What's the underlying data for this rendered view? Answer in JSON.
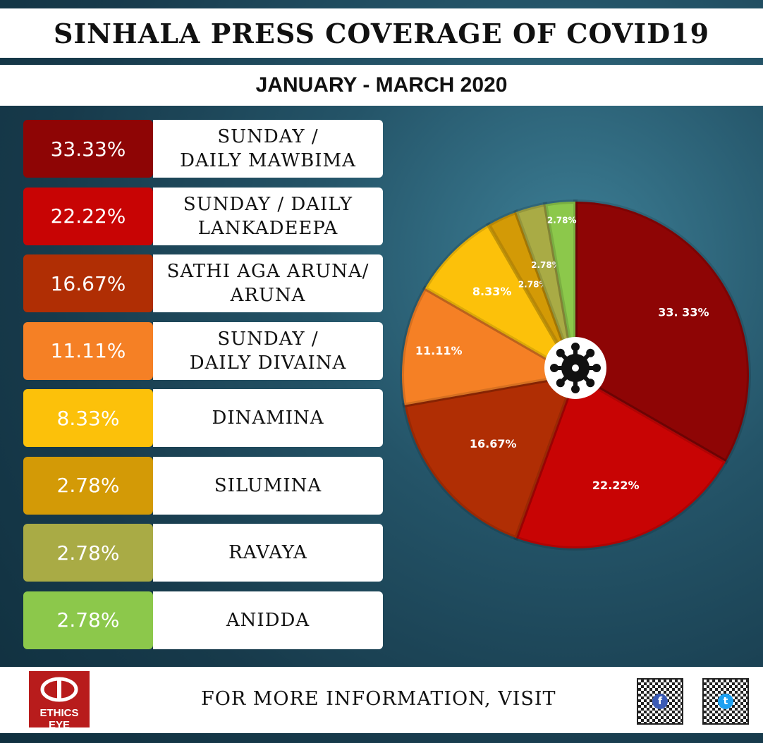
{
  "header": {
    "title": "SINHALA PRESS COVERAGE OF COVID19",
    "subtitle": "JANUARY - MARCH 2020"
  },
  "legend": [
    {
      "pct": "33.33%",
      "name": "SUNDAY /\nDAILY MAWBIMA",
      "color": "#8e0505"
    },
    {
      "pct": "22.22%",
      "name": "SUNDAY / DAILY\nLANKADEEPA",
      "color": "#c80404"
    },
    {
      "pct": "16.67%",
      "name": "SATHI AGA ARUNA/\nARUNA",
      "color": "#b02e04"
    },
    {
      "pct": "11.11%",
      "name": "SUNDAY /\nDAILY DIVAINA",
      "color": "#f58025"
    },
    {
      "pct": "8.33%",
      "name": "DINAMINA",
      "color": "#fcc10a"
    },
    {
      "pct": "2.78%",
      "name": "SILUMINA",
      "color": "#d39a06"
    },
    {
      "pct": "2.78%",
      "name": "RAVAYA",
      "color": "#a9ab45"
    },
    {
      "pct": "2.78%",
      "name": "ANIDDA",
      "color": "#8cc84b"
    }
  ],
  "chart_data": {
    "type": "pie",
    "start": "top, clockwise",
    "slices": [
      {
        "label": "33. 33%",
        "value": 33.33,
        "color": "#8e0505"
      },
      {
        "label": "22.22%",
        "value": 22.22,
        "color": "#c80404"
      },
      {
        "label": "16.67%",
        "value": 16.67,
        "color": "#b02e04"
      },
      {
        "label": "11.11%",
        "value": 11.11,
        "color": "#f58025"
      },
      {
        "label": "8.33%",
        "value": 8.33,
        "color": "#fcc10a"
      },
      {
        "label": "2.78%",
        "value": 2.78,
        "color": "#d39a06"
      },
      {
        "label": "2.78%",
        "value": 2.78,
        "color": "#a9ab45"
      },
      {
        "label": "2.78%",
        "value": 2.78,
        "color": "#8cc84b"
      }
    ],
    "center_icon": "virus-icon"
  },
  "footer": {
    "visit": "FOR MORE INFORMATION, VISIT",
    "logo_text": "ETHICS EYE",
    "qr_codes": [
      {
        "icon": "facebook-icon",
        "color": "#3b5bb5"
      },
      {
        "icon": "twitter-icon",
        "color": "#1da1f2"
      }
    ]
  }
}
